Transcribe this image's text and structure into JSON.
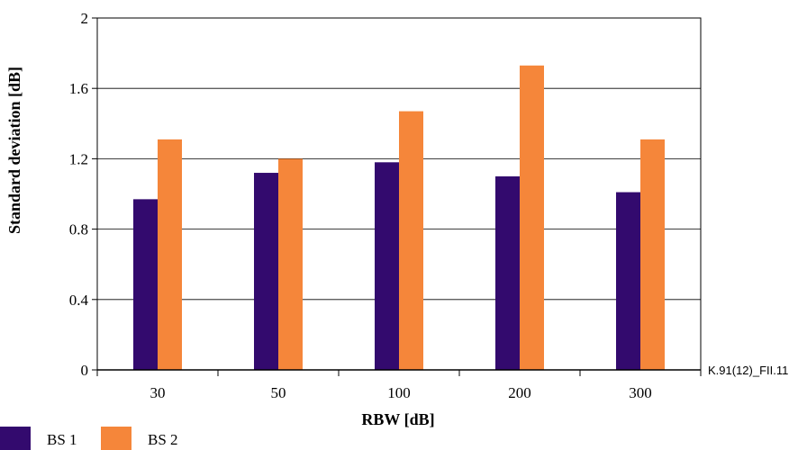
{
  "chart_data": {
    "type": "bar",
    "xlabel": "RBW [dB]",
    "ylabel": "Standard deviation [dB]",
    "categories": [
      "30",
      "50",
      "100",
      "200",
      "300"
    ],
    "ylim": [
      0,
      2
    ],
    "yticks": [
      0,
      0.4,
      0.8,
      1.2,
      1.6,
      2
    ],
    "ytick_labels": [
      "0",
      "0.4",
      "0.8",
      "1.2",
      "1.6",
      "2"
    ],
    "grid": true,
    "legend_position": "bottom-left",
    "series": [
      {
        "name": "BS 1",
        "color": "#330a6e",
        "values": [
          0.97,
          1.12,
          1.18,
          1.1,
          1.01
        ]
      },
      {
        "name": "BS 2",
        "color": "#f5863a",
        "values": [
          1.31,
          1.2,
          1.47,
          1.73,
          1.31
        ]
      }
    ],
    "annotation": "K.91(12)_FII.11"
  }
}
